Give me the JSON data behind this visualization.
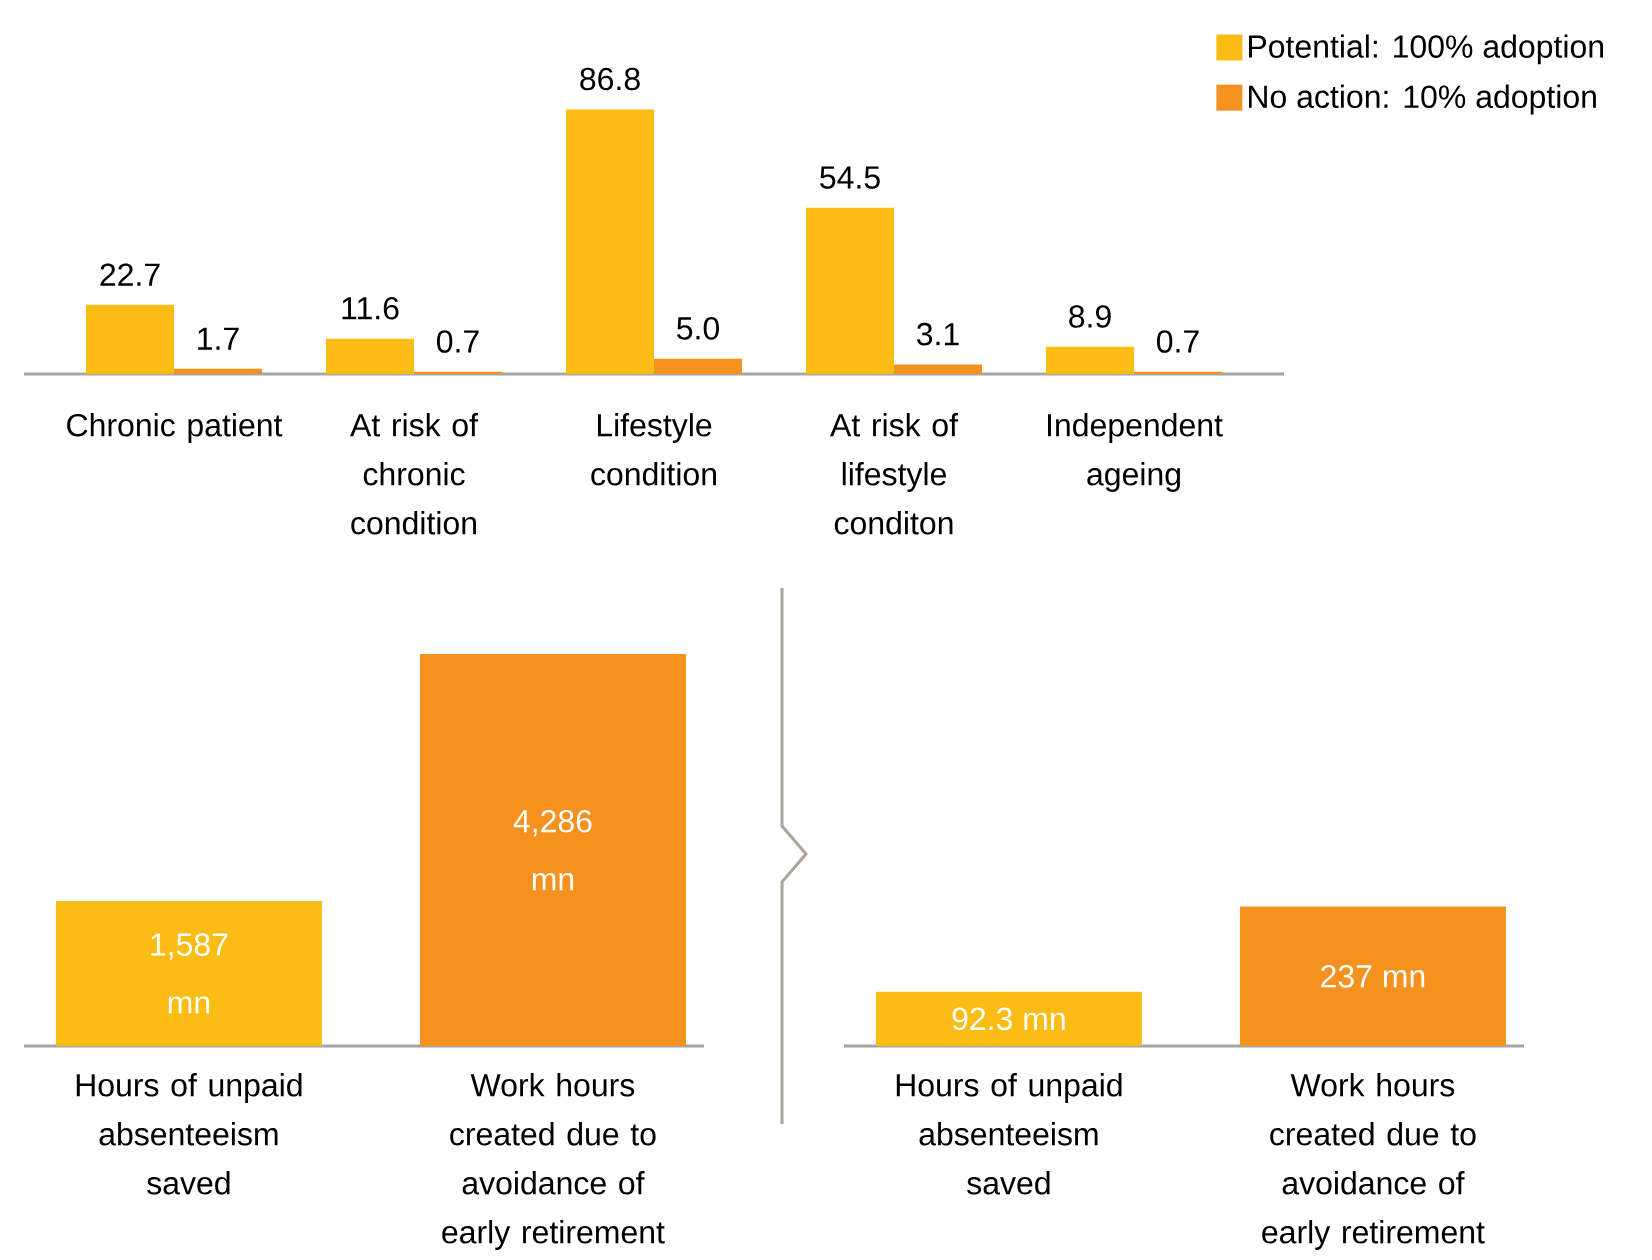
{
  "chart_data": [
    {
      "type": "bar",
      "categories": [
        "Chronic patient",
        "At risk of chronic condition",
        "Lifestyle condition",
        "At risk of lifestyle conditon",
        "Independent ageing"
      ],
      "series": [
        {
          "name": "Potential: 100% adoption",
          "color": "#fbbc14",
          "values": [
            22.7,
            11.6,
            86.8,
            54.5,
            8.9
          ],
          "value_labels": [
            "22.7",
            "11.6",
            "86.8",
            "54.5",
            "8.9"
          ]
        },
        {
          "name": "No action: 10% adoption",
          "color": "#f5911e",
          "values": [
            1.7,
            0.7,
            5.0,
            3.1,
            0.7
          ],
          "value_labels": [
            "1.7",
            "0.7",
            "5.0",
            "3.1",
            "0.7"
          ]
        }
      ],
      "legend": "top right"
    },
    {
      "type": "bar",
      "categories": [
        "Hours of unpaid absenteeism saved",
        "Work hours created due to avoidance of early retirement"
      ],
      "values": [
        1587,
        4286
      ],
      "colors": [
        "#fbbc14",
        "#f5911e"
      ],
      "value_labels": [
        "1,587 mn",
        "4,286 mn"
      ]
    },
    {
      "type": "bar",
      "categories": [
        "Hours of unpaid absenteeism saved",
        "Work hours created due to avoidance of early retirement"
      ],
      "values": [
        92.3,
        237
      ],
      "colors": [
        "#fbbc14",
        "#f5911e"
      ],
      "value_labels": [
        "92.3 mn",
        "237 mn"
      ]
    }
  ]
}
